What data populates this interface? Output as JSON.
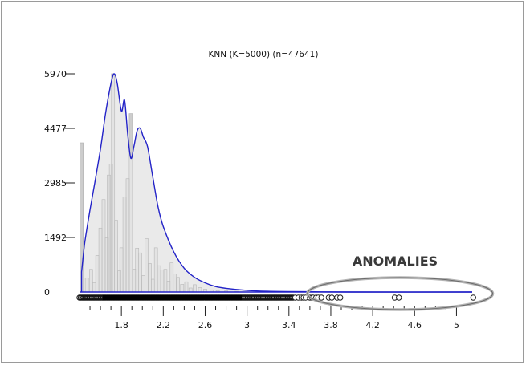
{
  "chart_data": {
    "type": "histogram",
    "title": "KNN (K=5000) (n=47641)",
    "xlabel": "",
    "ylabel": "",
    "xlim": [
      1.4,
      5.15
    ],
    "ylim": [
      0,
      5970
    ],
    "y_ticks": [
      0,
      1492,
      2985,
      4477,
      5970
    ],
    "y_tick_labels": [
      "0",
      "1492",
      "2985",
      "4477",
      "5970"
    ],
    "x_ticks": [
      1.8,
      2.2,
      2.6,
      3,
      3.4,
      3.8,
      4.2,
      4.6,
      5
    ],
    "x_tick_labels": [
      "1.8",
      "2.2",
      "2.6",
      "3",
      "3.4",
      "3.8",
      "4.2",
      "4.6",
      "5"
    ],
    "x_minor_tick_step": 0.1,
    "grid": false,
    "colors": {
      "density_line": "#2323c8",
      "density_fill": "#e6e6e6",
      "bars": "#c8c8c8",
      "annotation_ellipse": "#a0a0a0"
    },
    "series": [
      {
        "kind": "histogram-bars",
        "x": [
          1.42,
          1.47,
          1.51,
          1.54,
          1.57,
          1.6,
          1.63,
          1.66,
          1.68,
          1.7,
          1.72,
          1.75,
          1.78,
          1.8,
          1.83,
          1.86,
          1.89,
          1.92,
          1.95,
          1.98,
          2.01,
          2.04,
          2.07,
          2.1,
          2.13,
          2.16,
          2.19,
          2.22,
          2.25,
          2.28,
          2.31,
          2.34,
          2.38,
          2.42,
          2.46,
          2.5,
          2.55,
          2.6,
          2.66,
          2.72,
          2.8,
          2.9
        ],
        "values": [
          4080,
          380,
          620,
          250,
          1000,
          1750,
          2530,
          1480,
          3200,
          3500,
          5970,
          1960,
          580,
          1210,
          2600,
          3100,
          4880,
          630,
          1200,
          1070,
          450,
          1460,
          780,
          350,
          1210,
          720,
          600,
          620,
          300,
          800,
          490,
          400,
          210,
          280,
          110,
          200,
          120,
          80,
          60,
          40,
          30,
          20
        ]
      },
      {
        "kind": "density-curve",
        "x": [
          1.42,
          1.45,
          1.5,
          1.55,
          1.6,
          1.65,
          1.7,
          1.73,
          1.76,
          1.8,
          1.83,
          1.86,
          1.89,
          1.92,
          1.95,
          1.98,
          2.01,
          2.05,
          2.1,
          2.15,
          2.2,
          2.3,
          2.4,
          2.5,
          2.6,
          2.7,
          2.8,
          3.0,
          3.2,
          3.6,
          4.0,
          5.15
        ],
        "values": [
          550,
          1350,
          2240,
          3060,
          3910,
          4910,
          5700,
          5970,
          5720,
          4950,
          5250,
          4320,
          3660,
          3990,
          4410,
          4480,
          4240,
          3970,
          3140,
          2330,
          1790,
          1100,
          650,
          400,
          250,
          150,
          100,
          45,
          20,
          8,
          0,
          0
        ]
      }
    ],
    "rug_outliers_x": [
      3.46,
      3.49,
      3.52,
      3.54,
      3.56,
      3.6,
      3.62,
      3.63,
      3.66,
      3.68,
      3.71,
      3.78,
      3.81,
      3.86,
      3.89,
      4.41,
      4.45,
      5.16
    ],
    "annotations": [
      {
        "text": "ANOMALIES",
        "target": "outliers beyond ~3.6"
      }
    ]
  }
}
